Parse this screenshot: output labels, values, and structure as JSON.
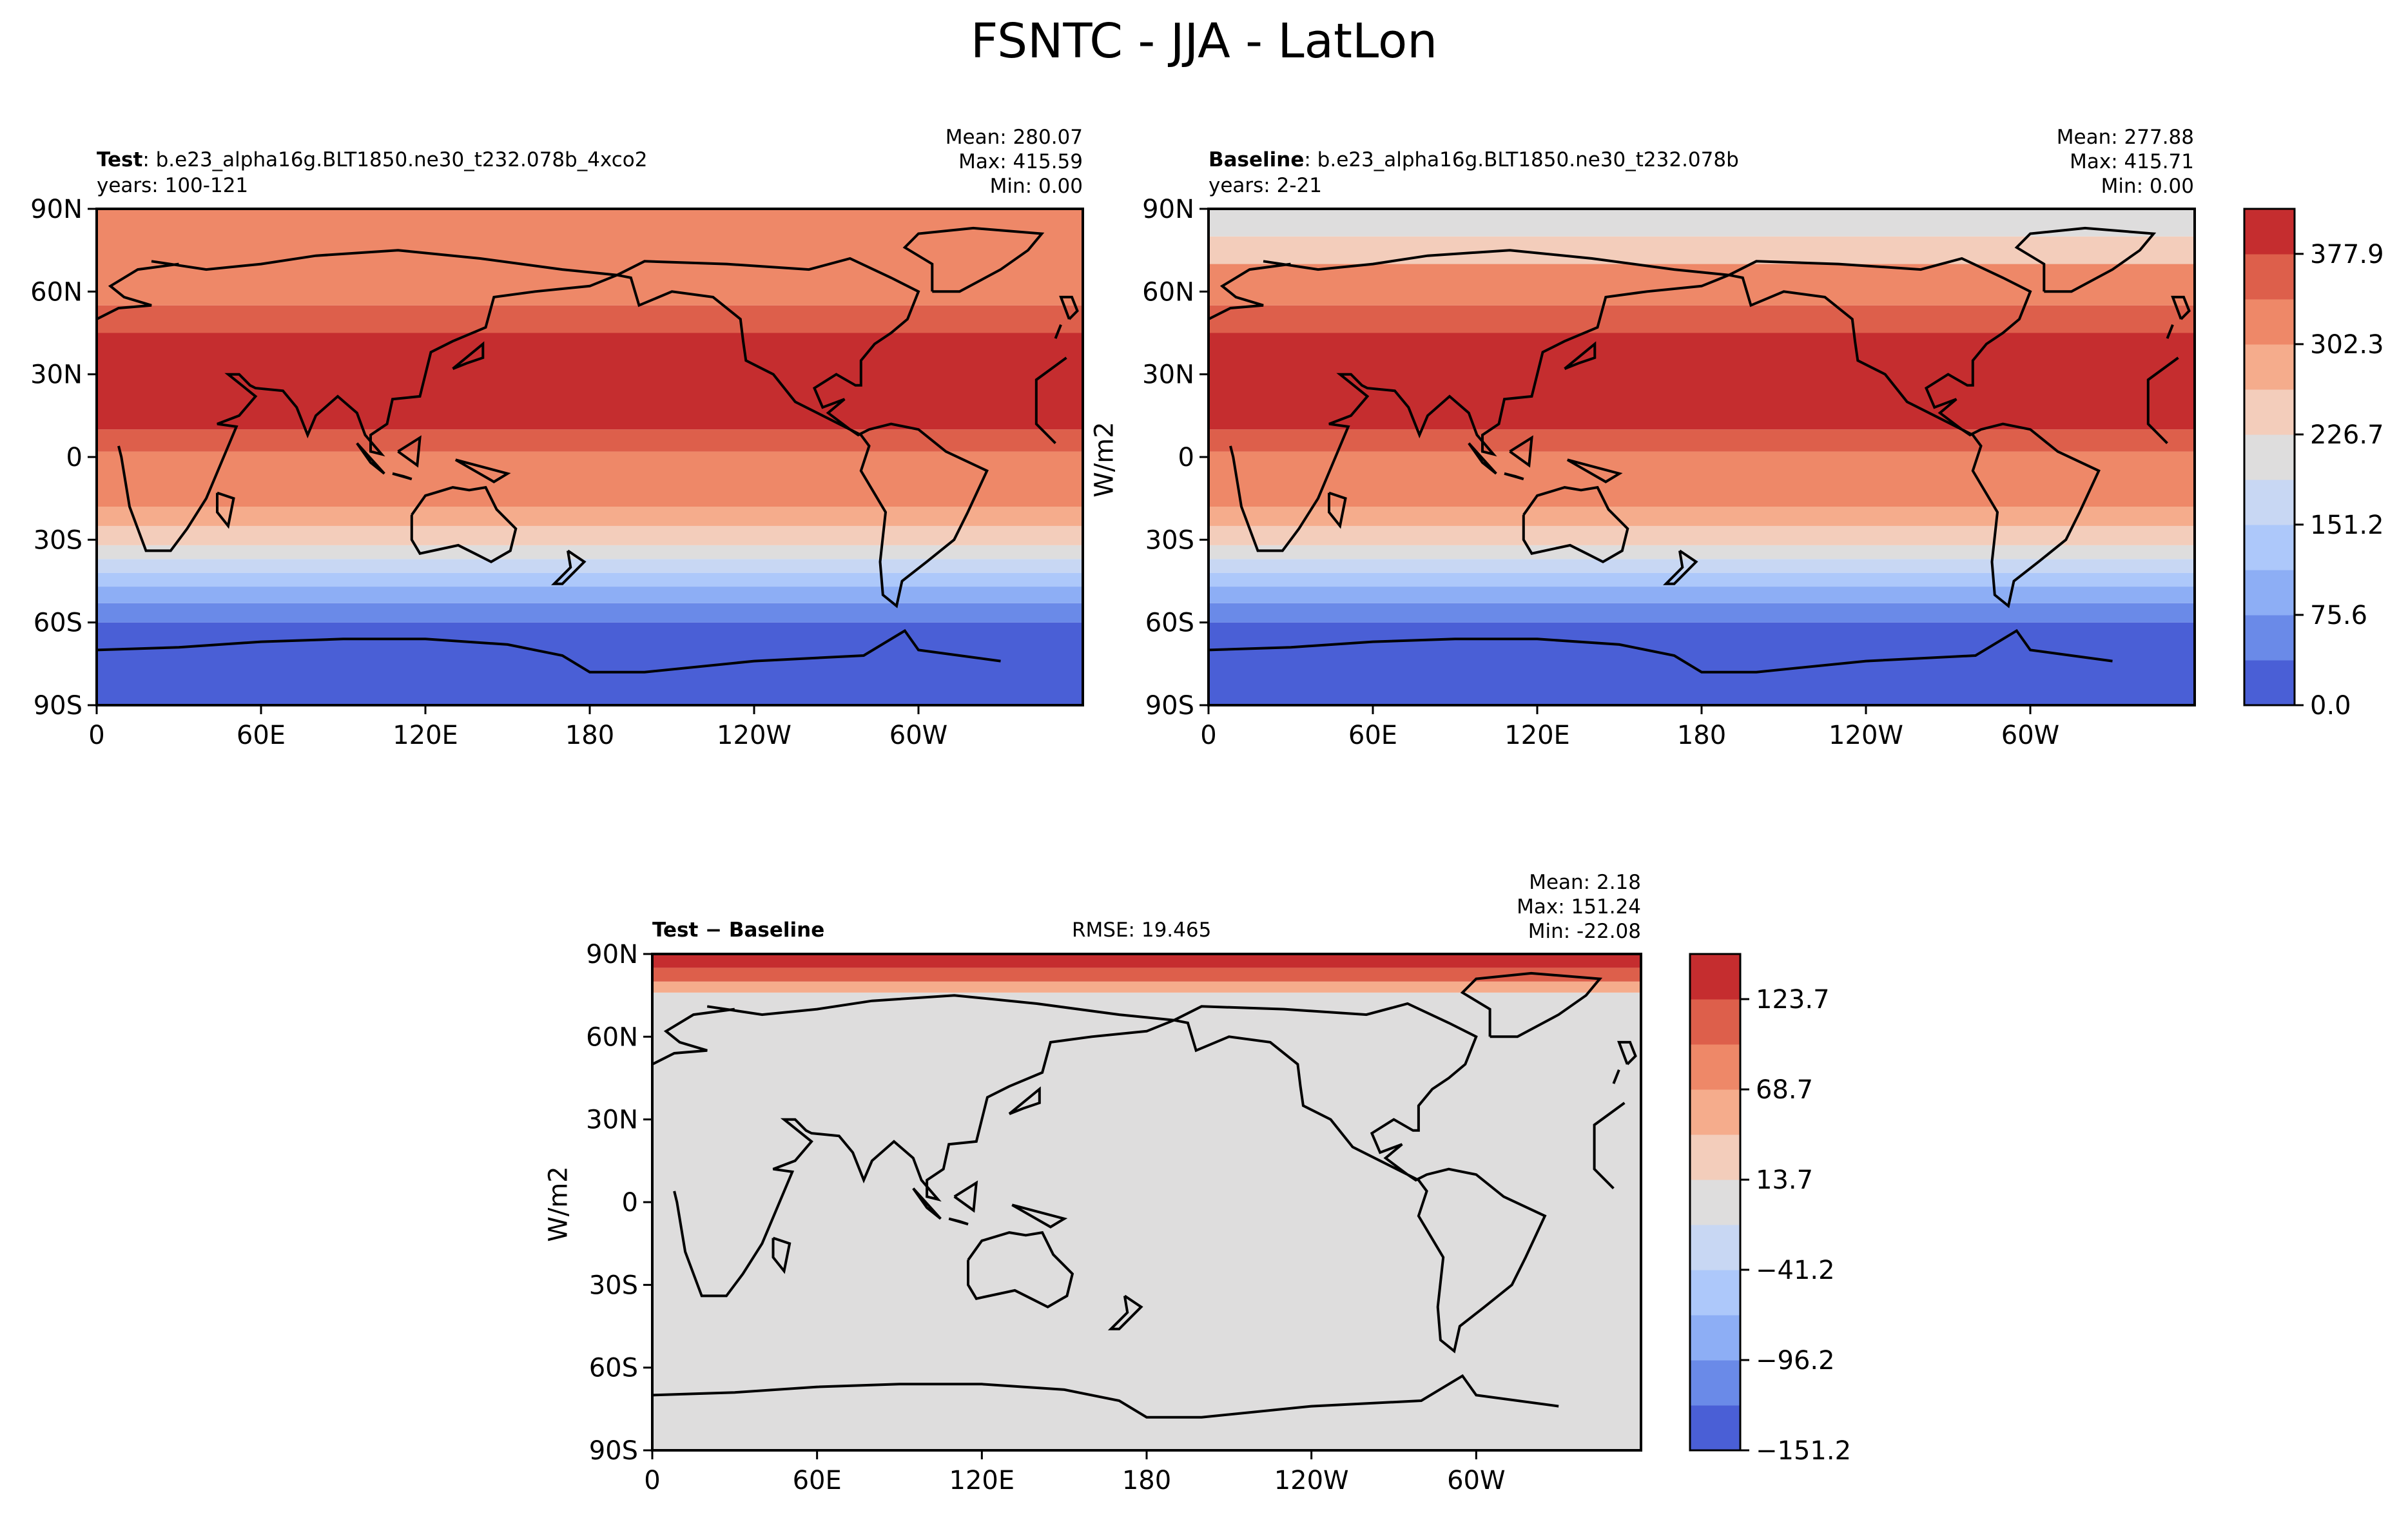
{
  "figure": {
    "title": "FSNTC - JJA - LatLon"
  },
  "chart_data": [
    {
      "type": "heatmap",
      "panel": "test",
      "label_bold": "Test",
      "label_rest": ": b.e23_alpha16g.BLT1850.ne30_t232.078b_4xco2",
      "years": "years: 100-121",
      "stats": {
        "mean": "Mean: 280.07",
        "max": "Max: 415.59",
        "min": "Min:  0.00"
      },
      "units": "W/m2",
      "x_ticks": [
        "0",
        "60E",
        "120E",
        "180",
        "120W",
        "60W"
      ],
      "y_ticks": [
        "90N",
        "60N",
        "30N",
        "0",
        "30S",
        "60S",
        "90S"
      ],
      "xlim": [
        0,
        360
      ],
      "ylim": [
        -90,
        90
      ],
      "zonal_bands": [
        {
          "lat_s": 55,
          "lat_n": 90,
          "value": 320
        },
        {
          "lat_s": 45,
          "lat_n": 55,
          "value": 350
        },
        {
          "lat_s": 10,
          "lat_n": 45,
          "value": 395
        },
        {
          "lat_s": 2,
          "lat_n": 10,
          "value": 370
        },
        {
          "lat_s": -8,
          "lat_n": 2,
          "value": 340
        },
        {
          "lat_s": -18,
          "lat_n": 2,
          "value": 310
        },
        {
          "lat_s": -25,
          "lat_n": -18,
          "value": 265
        },
        {
          "lat_s": -32,
          "lat_n": -25,
          "value": 240
        },
        {
          "lat_s": -37,
          "lat_n": -32,
          "value": 210
        },
        {
          "lat_s": -42,
          "lat_n": -37,
          "value": 180
        },
        {
          "lat_s": -47,
          "lat_n": -42,
          "value": 130
        },
        {
          "lat_s": -53,
          "lat_n": -47,
          "value": 100
        },
        {
          "lat_s": -60,
          "lat_n": -53,
          "value": 60
        },
        {
          "lat_s": -90,
          "lat_n": -60,
          "value": 20
        }
      ]
    },
    {
      "type": "heatmap",
      "panel": "baseline",
      "label_bold": "Baseline",
      "label_rest": ": b.e23_alpha16g.BLT1850.ne30_t232.078b",
      "years": "years: 2-21",
      "stats": {
        "mean": "Mean: 277.88",
        "max": "Max: 415.71",
        "min": "Min:  0.00"
      },
      "units": "W/m2",
      "x_ticks": [
        "0",
        "60E",
        "120E",
        "180",
        "120W",
        "60W"
      ],
      "y_ticks": [
        "90N",
        "60N",
        "30N",
        "0",
        "30S",
        "60S",
        "90S"
      ],
      "xlim": [
        0,
        360
      ],
      "ylim": [
        -90,
        90
      ],
      "zonal_bands": [
        {
          "lat_s": 80,
          "lat_n": 90,
          "value": 200
        },
        {
          "lat_s": 70,
          "lat_n": 80,
          "value": 250
        },
        {
          "lat_s": 55,
          "lat_n": 70,
          "value": 320
        },
        {
          "lat_s": 45,
          "lat_n": 55,
          "value": 350
        },
        {
          "lat_s": 10,
          "lat_n": 45,
          "value": 395
        },
        {
          "lat_s": 2,
          "lat_n": 10,
          "value": 370
        },
        {
          "lat_s": -8,
          "lat_n": 2,
          "value": 340
        },
        {
          "lat_s": -18,
          "lat_n": 2,
          "value": 310
        },
        {
          "lat_s": -25,
          "lat_n": -18,
          "value": 265
        },
        {
          "lat_s": -32,
          "lat_n": -25,
          "value": 240
        },
        {
          "lat_s": -37,
          "lat_n": -32,
          "value": 210
        },
        {
          "lat_s": -42,
          "lat_n": -37,
          "value": 180
        },
        {
          "lat_s": -47,
          "lat_n": -42,
          "value": 130
        },
        {
          "lat_s": -53,
          "lat_n": -47,
          "value": 100
        },
        {
          "lat_s": -60,
          "lat_n": -53,
          "value": 60
        },
        {
          "lat_s": -90,
          "lat_n": -60,
          "value": 20
        }
      ]
    },
    {
      "type": "heatmap",
      "panel": "difference",
      "label_bold": "Test − Baseline",
      "rmse": "RMSE: 19.465",
      "stats": {
        "mean": "Mean:  2.18",
        "max": "Max: 151.24",
        "min": "Min: -22.08"
      },
      "units": "W/m2",
      "x_ticks": [
        "0",
        "60E",
        "120E",
        "180",
        "120W",
        "60W"
      ],
      "y_ticks": [
        "90N",
        "60N",
        "30N",
        "0",
        "30S",
        "60S",
        "90S"
      ],
      "xlim": [
        0,
        360
      ],
      "ylim": [
        -90,
        90
      ],
      "zonal_bands": [
        {
          "lat_s": 85,
          "lat_n": 90,
          "value": 145
        },
        {
          "lat_s": 80,
          "lat_n": 85,
          "value": 100
        },
        {
          "lat_s": 76,
          "lat_n": 80,
          "value": 45
        },
        {
          "lat_s": -90,
          "lat_n": 76,
          "value": 0
        }
      ]
    }
  ],
  "colorbars": [
    {
      "name": "main",
      "tick_labels": [
        "0.0",
        "75.6",
        "151.2",
        "226.7",
        "302.3",
        "377.9"
      ],
      "tick_values": [
        0.0,
        75.6,
        151.2,
        226.7,
        302.3,
        377.9
      ],
      "range": [
        0,
        415.6
      ],
      "levels": 11,
      "colors": [
        "#4a5fd6",
        "#6a8ae8",
        "#8daef5",
        "#adc8fa",
        "#c8d7f3",
        "#dedddd",
        "#f3cdbb",
        "#f5ac8c",
        "#ee8868",
        "#dd5f4b",
        "#c52d2f"
      ]
    },
    {
      "name": "diff",
      "tick_labels": [
        "−151.2",
        "−96.2",
        "−41.2",
        "13.7",
        "68.7",
        "123.7"
      ],
      "tick_values": [
        -151.2,
        -96.2,
        -41.2,
        13.7,
        68.7,
        123.7
      ],
      "range": [
        -151.2,
        151.2
      ],
      "levels": 11,
      "colors": [
        "#4a5fd6",
        "#6a8ae8",
        "#8daef5",
        "#adc8fa",
        "#c8d7f3",
        "#dedddd",
        "#f3cdbb",
        "#f5ac8c",
        "#ee8868",
        "#dd5f4b",
        "#c52d2f"
      ]
    }
  ]
}
